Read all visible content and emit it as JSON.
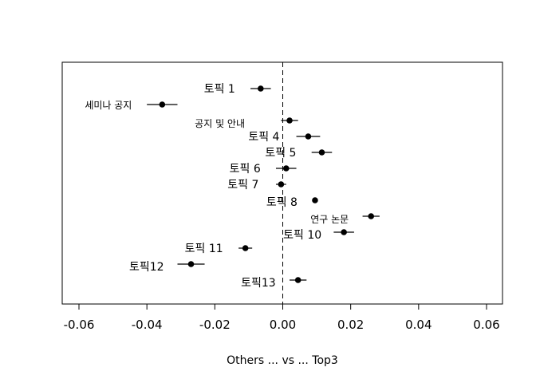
{
  "chart_data": {
    "type": "scatter",
    "xlabel": "Others ... vs ... Top3",
    "xlim": [
      -0.065,
      0.065
    ],
    "xticks": [
      -0.06,
      -0.04,
      -0.02,
      0.0,
      0.02,
      0.04,
      0.06
    ],
    "xtick_labels": [
      "-0.06",
      "-0.04",
      "-0.02",
      "0.00",
      "0.02",
      "0.04",
      "0.06"
    ],
    "reference_line": 0,
    "points": [
      {
        "label": "토픽 1",
        "value": -0.0065,
        "ci": [
          -0.0095,
          -0.0035
        ]
      },
      {
        "label": "세미나 공지",
        "value": -0.0355,
        "ci": [
          -0.04,
          -0.031
        ]
      },
      {
        "label": "공지 및 안내",
        "value": 0.002,
        "ci": [
          -0.0005,
          0.0045
        ]
      },
      {
        "label": "토픽 4",
        "value": 0.0075,
        "ci": [
          0.004,
          0.011
        ]
      },
      {
        "label": "토픽 5",
        "value": 0.0115,
        "ci": [
          0.0085,
          0.0145
        ]
      },
      {
        "label": "토픽 6",
        "value": 0.001,
        "ci": [
          -0.002,
          0.004
        ]
      },
      {
        "label": "토픽 7",
        "value": -0.0005,
        "ci": [
          -0.002,
          0.001
        ]
      },
      {
        "label": "토픽 8",
        "value": 0.0095,
        "ci": [
          0.0088,
          0.0102
        ]
      },
      {
        "label": "연구 논문",
        "value": 0.026,
        "ci": [
          0.0235,
          0.0285
        ]
      },
      {
        "label": "토픽 10",
        "value": 0.018,
        "ci": [
          0.015,
          0.021
        ]
      },
      {
        "label": "토픽 11",
        "value": -0.011,
        "ci": [
          -0.013,
          -0.009
        ]
      },
      {
        "label": "토픽12",
        "value": -0.027,
        "ci": [
          -0.031,
          -0.023
        ]
      },
      {
        "label": "토픽13",
        "value": 0.0045,
        "ci": [
          0.002,
          0.007
        ]
      }
    ]
  }
}
